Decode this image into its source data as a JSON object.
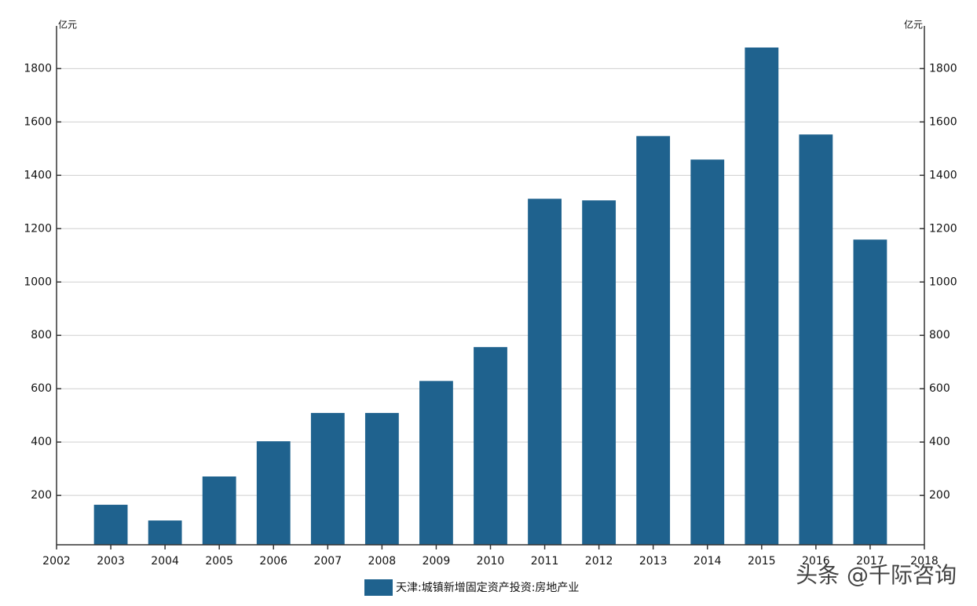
{
  "chart_data": {
    "type": "bar",
    "y_unit": "亿元",
    "y2_unit": "亿元",
    "x": [
      2003,
      2004,
      2005,
      2006,
      2007,
      2008,
      2009,
      2010,
      2011,
      2012,
      2013,
      2014,
      2015,
      2016,
      2017
    ],
    "series": [
      {
        "name": "天津:城镇新增固定资产投资:房地产业",
        "color": "#1f628e",
        "values": [
          165,
          106,
          271,
          403,
          509,
          509,
          629,
          756,
          1312,
          1306,
          1547,
          1459,
          1879,
          1553,
          1159
        ]
      }
    ],
    "xlim": [
      2002,
      2018
    ],
    "xticks": [
      2002,
      2003,
      2004,
      2005,
      2006,
      2007,
      2008,
      2009,
      2010,
      2011,
      2012,
      2013,
      2014,
      2015,
      2016,
      2017,
      2018
    ],
    "ylim": [
      15,
      1960
    ],
    "yticks": [
      200,
      400,
      600,
      800,
      1000,
      1200,
      1400,
      1600,
      1800
    ],
    "y2lim": [
      15,
      1960
    ],
    "y2ticks": [
      200,
      400,
      600,
      800,
      1000,
      1200,
      1400,
      1600,
      1800
    ],
    "grid": true,
    "watermark": "头条 @千际咨询"
  }
}
